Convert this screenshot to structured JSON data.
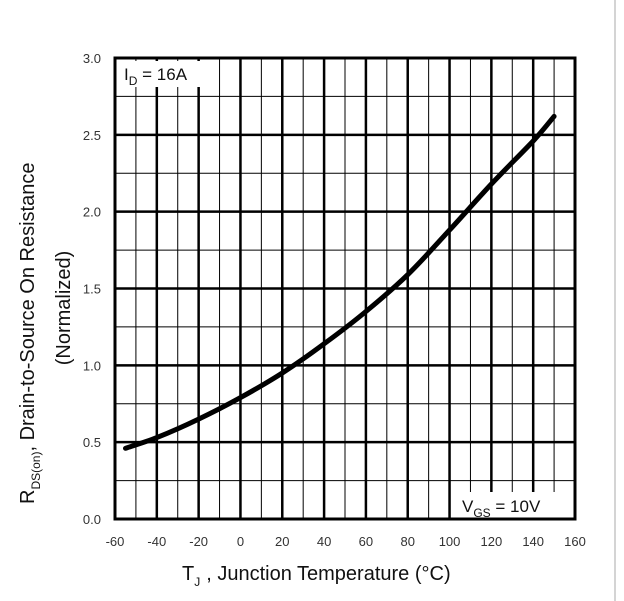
{
  "chart_data": {
    "type": "line",
    "xlabel": {
      "symbol": "T",
      "subscript": "J",
      "text": ", Junction Temperature (°C)"
    },
    "ylabel": {
      "line1_prefix": "R",
      "line1_subscript": "DS(on)",
      "line1_suffix": ",   Drain-to-Source On Resistance",
      "line2": "(Normalized)"
    },
    "xlim": [
      -60,
      160
    ],
    "ylim": [
      0.0,
      3.0
    ],
    "x_ticks": [
      -60,
      -40,
      -20,
      0,
      20,
      40,
      60,
      80,
      100,
      120,
      140,
      160
    ],
    "x_tick_labels": [
      "-60",
      "-40",
      "-20",
      "0",
      "20",
      "40",
      "60",
      "80",
      "100",
      "120",
      "140",
      "160"
    ],
    "y_ticks": [
      0.0,
      0.5,
      1.0,
      1.5,
      2.0,
      2.5,
      3.0
    ],
    "y_tick_labels": [
      "0.0",
      "0.5",
      "1.0",
      "1.5",
      "2.0",
      "2.5",
      "3.0"
    ],
    "minor_x_step": 10,
    "minor_y_step": 0.25,
    "grid": true,
    "annotations": [
      {
        "symbol": "I",
        "subscript": "D",
        "text": " = 16A",
        "position": "top-left"
      },
      {
        "symbol": "V",
        "subscript": "GS",
        "text": " = 10V",
        "position": "bottom-right"
      }
    ],
    "series": [
      {
        "name": "RDS(on)",
        "x": [
          -55,
          -40,
          -20,
          0,
          20,
          40,
          60,
          80,
          100,
          120,
          140,
          150
        ],
        "y": [
          0.46,
          0.53,
          0.65,
          0.79,
          0.95,
          1.14,
          1.35,
          1.59,
          1.88,
          2.18,
          2.46,
          2.62
        ]
      }
    ]
  }
}
